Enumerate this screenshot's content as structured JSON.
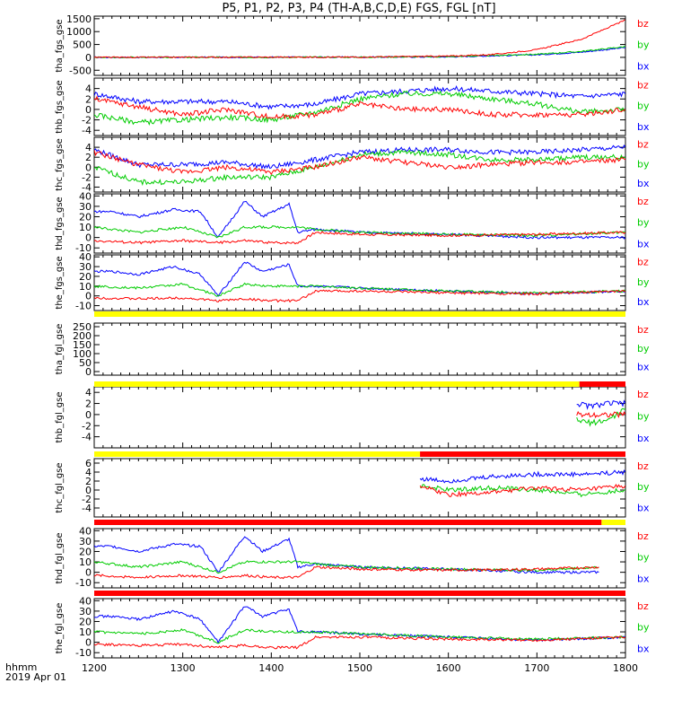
{
  "title": "P5, P1, P2, P3, P4 (TH-A,B,C,D,E) FGS, FGL [nT]",
  "colors": {
    "bx": "#0000ff",
    "by": "#00cc00",
    "bz": "#ff0000",
    "yellow": "#ffff00",
    "red": "#ff0000"
  },
  "x_axis": {
    "range": [
      1200,
      1800
    ],
    "ticks": [
      "1200",
      "1300",
      "1400",
      "1500",
      "1600",
      "1700",
      "1800"
    ],
    "label_line1": "hhmm",
    "label_line2": "2019 Apr 01"
  },
  "legend": [
    "bz",
    "by",
    "bx"
  ],
  "chart_data": [
    {
      "type": "line",
      "ylabel": "tha_fgs_gse",
      "ylim": [
        -700,
        1600
      ],
      "yticks": [
        "1500",
        "1000",
        "500",
        "0",
        "-500"
      ],
      "series": [
        {
          "name": "bx",
          "x": [
            1200,
            1500,
            1600,
            1700,
            1750,
            1800
          ],
          "y": [
            0,
            10,
            20,
            100,
            200,
            380
          ]
        },
        {
          "name": "by",
          "x": [
            1200,
            1500,
            1600,
            1700,
            1750,
            1800
          ],
          "y": [
            0,
            10,
            30,
            120,
            230,
            420
          ]
        },
        {
          "name": "bz",
          "x": [
            1200,
            1500,
            1600,
            1650,
            1700,
            1750,
            1800
          ],
          "y": [
            0,
            10,
            50,
            110,
            300,
            700,
            1450
          ]
        }
      ]
    },
    {
      "type": "line",
      "ylabel": "thb_fgs_gse",
      "ylim": [
        -5,
        6
      ],
      "yticks": [
        "4",
        "2",
        "0",
        "-2",
        "-4"
      ],
      "series": [
        {
          "name": "bx",
          "x": [
            1200,
            1250,
            1300,
            1350,
            1400,
            1450,
            1500,
            1550,
            1600,
            1650,
            1700,
            1750,
            1800
          ],
          "y": [
            3,
            1.5,
            1.5,
            1.5,
            0.5,
            1,
            3,
            3.5,
            4,
            3.5,
            3,
            2.5,
            3
          ]
        },
        {
          "name": "by",
          "x": [
            1200,
            1250,
            1300,
            1350,
            1400,
            1450,
            1500,
            1550,
            1600,
            1650,
            1700,
            1750,
            1800
          ],
          "y": [
            -1,
            -2.5,
            -2,
            -1.5,
            -2,
            -0.5,
            2,
            3,
            3,
            2,
            1,
            -0.5,
            0
          ]
        },
        {
          "name": "bz",
          "x": [
            1200,
            1250,
            1300,
            1350,
            1400,
            1450,
            1500,
            1550,
            1600,
            1650,
            1700,
            1750,
            1800
          ],
          "y": [
            2,
            0.5,
            -1,
            0,
            -1.5,
            -1,
            1,
            0,
            0,
            -1,
            -1,
            -1,
            0
          ]
        }
      ]
    },
    {
      "type": "line",
      "ylabel": "thc_fgs_gse",
      "ylim": [
        -5,
        6
      ],
      "yticks": [
        "4",
        "2",
        "0",
        "-2",
        "-4"
      ],
      "series": [
        {
          "name": "bx",
          "x": [
            1200,
            1250,
            1300,
            1350,
            1400,
            1450,
            1500,
            1550,
            1600,
            1650,
            1700,
            1750,
            1800
          ],
          "y": [
            3.5,
            0.5,
            0.5,
            1,
            0,
            1.5,
            3,
            3.5,
            3.5,
            3,
            3,
            3.5,
            4
          ]
        },
        {
          "name": "by",
          "x": [
            1200,
            1250,
            1300,
            1350,
            1400,
            1450,
            1500,
            1550,
            1600,
            1650,
            1700,
            1750,
            1800
          ],
          "y": [
            0,
            -3,
            -3,
            -2,
            -2,
            0,
            2.5,
            3,
            2.5,
            1.5,
            1.5,
            2,
            2
          ]
        },
        {
          "name": "bz",
          "x": [
            1200,
            1250,
            1300,
            1350,
            1400,
            1450,
            1500,
            1550,
            1600,
            1650,
            1700,
            1750,
            1800
          ],
          "y": [
            3,
            0.5,
            -1,
            0,
            -1,
            0,
            2,
            1,
            0,
            0.5,
            1,
            1,
            1.5
          ]
        }
      ]
    },
    {
      "type": "line",
      "ylabel": "thd_fgs_gse",
      "ylim": [
        -15,
        42
      ],
      "yticks": [
        "40",
        "30",
        "20",
        "10",
        "0",
        "-10"
      ],
      "series": [
        {
          "name": "bx",
          "x": [
            1200,
            1220,
            1250,
            1290,
            1320,
            1340,
            1370,
            1390,
            1420,
            1430,
            1450,
            1500,
            1600,
            1700,
            1800
          ],
          "y": [
            25,
            25,
            20,
            27,
            25,
            0,
            35,
            20,
            32,
            5,
            8,
            5,
            3,
            0,
            0
          ]
        },
        {
          "name": "by",
          "x": [
            1200,
            1250,
            1300,
            1340,
            1370,
            1400,
            1430,
            1450,
            1500,
            1600,
            1700,
            1800
          ],
          "y": [
            10,
            5,
            10,
            0,
            10,
            10,
            10,
            8,
            5,
            3,
            2,
            5
          ]
        },
        {
          "name": "bz",
          "x": [
            1200,
            1250,
            1300,
            1340,
            1370,
            1400,
            1430,
            1450,
            1500,
            1600,
            1700,
            1800
          ],
          "y": [
            -3,
            -5,
            -3,
            -5,
            -3,
            -5,
            -5,
            5,
            3,
            2,
            3,
            5
          ]
        }
      ]
    },
    {
      "type": "line",
      "ylabel": "the_fgs_gse",
      "ylim": [
        -15,
        42
      ],
      "yticks": [
        "40",
        "30",
        "20",
        "10",
        "0",
        "-10"
      ],
      "series": [
        {
          "name": "bx",
          "x": [
            1200,
            1220,
            1250,
            1290,
            1320,
            1340,
            1370,
            1390,
            1420,
            1430,
            1450,
            1500,
            1600,
            1700,
            1800
          ],
          "y": [
            25,
            25,
            22,
            30,
            22,
            0,
            35,
            25,
            32,
            10,
            10,
            8,
            5,
            2,
            5
          ]
        },
        {
          "name": "by",
          "x": [
            1200,
            1250,
            1300,
            1340,
            1370,
            1400,
            1430,
            1450,
            1500,
            1600,
            1700,
            1800
          ],
          "y": [
            10,
            8,
            12,
            0,
            12,
            10,
            10,
            10,
            8,
            5,
            3,
            5
          ]
        },
        {
          "name": "bz",
          "x": [
            1200,
            1250,
            1300,
            1340,
            1370,
            1400,
            1430,
            1450,
            1500,
            1600,
            1700,
            1800
          ],
          "y": [
            -2,
            -3,
            -2,
            -5,
            -3,
            -5,
            -5,
            5,
            5,
            3,
            2,
            5
          ]
        }
      ]
    },
    {
      "type": "line",
      "ylabel": "tha_fgl_gse",
      "ylim": [
        -20,
        270
      ],
      "yticks": [
        "250",
        "200",
        "150",
        "100",
        "50",
        "0"
      ],
      "status_bar": [
        {
          "from": 1200,
          "to": 1800,
          "color": "yellow"
        }
      ],
      "series": []
    },
    {
      "type": "line",
      "ylabel": "thb_fgl_gse",
      "ylim": [
        -6,
        5
      ],
      "yticks": [
        "4",
        "2",
        "0",
        "-2",
        "-4"
      ],
      "status_bar": [
        {
          "from": 1200,
          "to": 1748,
          "color": "yellow"
        },
        {
          "from": 1748,
          "to": 1800,
          "color": "red"
        }
      ],
      "series": [
        {
          "name": "bx",
          "x": [
            1745,
            1760,
            1780,
            1800
          ],
          "y": [
            2,
            1.5,
            2,
            2
          ]
        },
        {
          "name": "by",
          "x": [
            1745,
            1760,
            1780,
            1800
          ],
          "y": [
            -1,
            -1.5,
            -1,
            1
          ]
        },
        {
          "name": "bz",
          "x": [
            1745,
            1760,
            1780,
            1800
          ],
          "y": [
            0,
            0,
            0,
            0
          ]
        }
      ]
    },
    {
      "type": "line",
      "ylabel": "thc_fgl_gse",
      "ylim": [
        -6,
        7
      ],
      "yticks": [
        "6",
        "4",
        "2",
        "0",
        "-2",
        "-4"
      ],
      "status_bar": [
        {
          "from": 1200,
          "to": 1568,
          "color": "yellow"
        },
        {
          "from": 1568,
          "to": 1800,
          "color": "red"
        }
      ],
      "series": [
        {
          "name": "bx",
          "x": [
            1568,
            1600,
            1650,
            1700,
            1750,
            1800
          ],
          "y": [
            2.5,
            2,
            3,
            3.5,
            3.5,
            4
          ]
        },
        {
          "name": "by",
          "x": [
            1568,
            1600,
            1650,
            1700,
            1750,
            1800
          ],
          "y": [
            1,
            0,
            0.5,
            0,
            -1,
            0
          ]
        },
        {
          "name": "bz",
          "x": [
            1568,
            1600,
            1650,
            1700,
            1750,
            1800
          ],
          "y": [
            1,
            -1,
            -0.5,
            0.5,
            0,
            1
          ]
        }
      ]
    },
    {
      "type": "line",
      "ylabel": "thd_fgl_gse",
      "ylim": [
        -15,
        42
      ],
      "yticks": [
        "40",
        "30",
        "20",
        "10",
        "0",
        "-10"
      ],
      "status_bar": [
        {
          "from": 1200,
          "to": 1773,
          "color": "red"
        },
        {
          "from": 1773,
          "to": 1800,
          "color": "yellow"
        }
      ],
      "series": [
        {
          "name": "bx",
          "x": [
            1200,
            1220,
            1250,
            1290,
            1320,
            1340,
            1370,
            1390,
            1420,
            1430,
            1450,
            1500,
            1600,
            1700,
            1770
          ],
          "y": [
            25,
            25,
            20,
            27,
            25,
            0,
            35,
            20,
            32,
            5,
            8,
            5,
            3,
            0,
            0
          ]
        },
        {
          "name": "by",
          "x": [
            1200,
            1250,
            1300,
            1340,
            1370,
            1400,
            1430,
            1450,
            1500,
            1600,
            1700,
            1770
          ],
          "y": [
            10,
            5,
            10,
            0,
            10,
            10,
            10,
            8,
            5,
            3,
            2,
            5
          ]
        },
        {
          "name": "bz",
          "x": [
            1200,
            1250,
            1300,
            1340,
            1370,
            1400,
            1430,
            1450,
            1500,
            1600,
            1700,
            1770
          ],
          "y": [
            -3,
            -5,
            -3,
            -5,
            -3,
            -5,
            -5,
            5,
            3,
            2,
            3,
            5
          ]
        }
      ]
    },
    {
      "type": "line",
      "ylabel": "the_fgl_gse",
      "ylim": [
        -15,
        42
      ],
      "yticks": [
        "40",
        "30",
        "20",
        "10",
        "0",
        "-10"
      ],
      "status_bar": [
        {
          "from": 1200,
          "to": 1800,
          "color": "red"
        }
      ],
      "series": [
        {
          "name": "bx",
          "x": [
            1200,
            1220,
            1250,
            1290,
            1320,
            1340,
            1370,
            1390,
            1420,
            1430,
            1450,
            1500,
            1600,
            1700,
            1800
          ],
          "y": [
            25,
            25,
            22,
            30,
            22,
            0,
            35,
            25,
            32,
            10,
            10,
            8,
            5,
            2,
            5
          ]
        },
        {
          "name": "by",
          "x": [
            1200,
            1250,
            1300,
            1340,
            1370,
            1400,
            1430,
            1450,
            1500,
            1600,
            1700,
            1800
          ],
          "y": [
            10,
            8,
            12,
            0,
            12,
            10,
            10,
            10,
            8,
            5,
            3,
            5
          ]
        },
        {
          "name": "bz",
          "x": [
            1200,
            1250,
            1300,
            1340,
            1370,
            1400,
            1430,
            1450,
            1500,
            1600,
            1700,
            1800
          ],
          "y": [
            -2,
            -3,
            -2,
            -5,
            -3,
            -5,
            -5,
            5,
            5,
            3,
            2,
            5
          ]
        }
      ]
    }
  ]
}
